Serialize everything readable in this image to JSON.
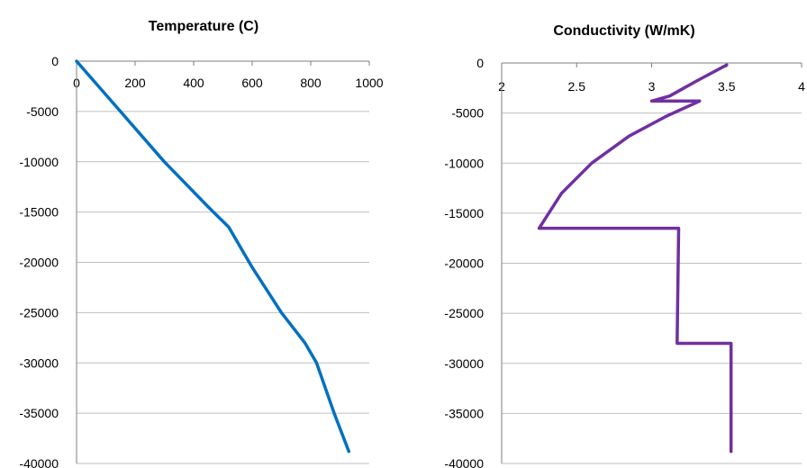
{
  "chart_data": [
    {
      "type": "line",
      "title": "Temperature (C)",
      "xlim": [
        0,
        1000
      ],
      "ylim": [
        -40000,
        0
      ],
      "x_ticks": [
        "0",
        "200",
        "400",
        "600",
        "800",
        "1000"
      ],
      "y_ticks": [
        "0",
        "-5000",
        "-10000",
        "-15000",
        "-20000",
        "-25000",
        "-30000",
        "-35000",
        "-40000"
      ],
      "grid": "horizontal",
      "series": [
        {
          "color": "#0070c0",
          "points": [
            [
              0,
              0
            ],
            [
              150,
              -5000
            ],
            [
              300,
              -10000
            ],
            [
              450,
              -14500
            ],
            [
              520,
              -16500
            ],
            [
              600,
              -20500
            ],
            [
              700,
              -25000
            ],
            [
              780,
              -28000
            ],
            [
              820,
              -30000
            ],
            [
              880,
              -35000
            ],
            [
              930,
              -38800
            ]
          ]
        }
      ]
    },
    {
      "type": "line",
      "title": "Conductivity (W/mK)",
      "xlim": [
        2,
        4
      ],
      "ylim": [
        -40000,
        0
      ],
      "x_ticks": [
        "2",
        "2.5",
        "3",
        "3.5",
        "4"
      ],
      "y_ticks": [
        "0",
        "-5000",
        "-10000",
        "-15000",
        "-20000",
        "-25000",
        "-30000",
        "-35000",
        "-40000"
      ],
      "grid": "horizontal",
      "series": [
        {
          "color": "#7030a0",
          "points": [
            [
              3.5,
              -200
            ],
            [
              3.3,
              -1800
            ],
            [
              3.12,
              -3300
            ],
            [
              3.0,
              -3800
            ],
            [
              3.32,
              -3800
            ],
            [
              3.1,
              -5300
            ],
            [
              2.85,
              -7300
            ],
            [
              2.6,
              -10000
            ],
            [
              2.4,
              -13000
            ],
            [
              2.25,
              -16500
            ],
            [
              3.18,
              -16500
            ],
            [
              3.17,
              -28000
            ],
            [
              3.53,
              -28000
            ],
            [
              3.53,
              -38800
            ]
          ]
        }
      ]
    }
  ]
}
